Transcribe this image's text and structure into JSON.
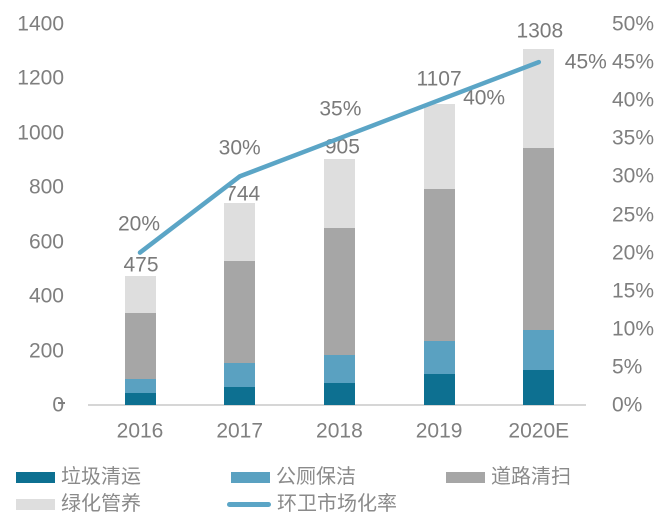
{
  "chart_data": {
    "type": "bar",
    "subtype": "stacked-bar-with-line-overlay",
    "title": "",
    "categories": [
      "2016",
      "2017",
      "2018",
      "2019",
      "2020E"
    ],
    "series": [
      {
        "name": "垃圾清运",
        "type": "bar-stack",
        "color": "#0d7091",
        "values": [
          45,
          65,
          80,
          115,
          130
        ]
      },
      {
        "name": "公厕保洁",
        "type": "bar-stack",
        "color": "#5aa1c1",
        "values": [
          50,
          90,
          105,
          120,
          145
        ]
      },
      {
        "name": "道路清扫",
        "type": "bar-stack",
        "color": "#a6a6a6",
        "values": [
          243,
          375,
          465,
          560,
          670
        ]
      },
      {
        "name": "绿化管养",
        "type": "bar-stack",
        "color": "#dedede",
        "values": [
          137,
          214,
          255,
          312,
          363
        ]
      }
    ],
    "bar_totals": [
      475,
      744,
      905,
      1107,
      1308
    ],
    "bar_total_labels": [
      "475",
      "744",
      "905",
      "1107",
      "1308"
    ],
    "line_series": {
      "name": "环卫市场化率",
      "color": "#5ba5c6",
      "axis": "right",
      "values_pct": [
        20,
        30,
        35,
        40,
        45
      ],
      "point_labels": [
        "20%",
        "30%",
        "35%",
        "40%",
        "45%"
      ]
    },
    "left_axis": {
      "min": 0,
      "max": 1400,
      "step": 200,
      "ticks": [
        "1400",
        "1200",
        "1000",
        "800",
        "600",
        "400",
        "200",
        "0"
      ]
    },
    "right_axis": {
      "min_pct": 0,
      "max_pct": 50,
      "step_pct": 5,
      "ticks": [
        "50%",
        "45%",
        "40%",
        "35%",
        "30%",
        "25%",
        "20%",
        "15%",
        "10%",
        "5%",
        "0%"
      ]
    },
    "grid": false,
    "legend_position": "bottom-left-two-rows"
  },
  "legend": {
    "row1": [
      "垃圾清运",
      "公厕保洁",
      "道路清扫"
    ],
    "row2": [
      "绿化管养",
      "环卫市场化率"
    ]
  },
  "colors": {
    "garbage_removal": "#0d7091",
    "public_toilet_cleaning": "#5aa1c1",
    "road_sweeping": "#a6a6a6",
    "greening_maintenance": "#dedede",
    "marketization_line": "#5ba5c6",
    "axis_text": "#7f7f7f",
    "axis_line": "#d6d6d6",
    "background": "#ffffff"
  }
}
